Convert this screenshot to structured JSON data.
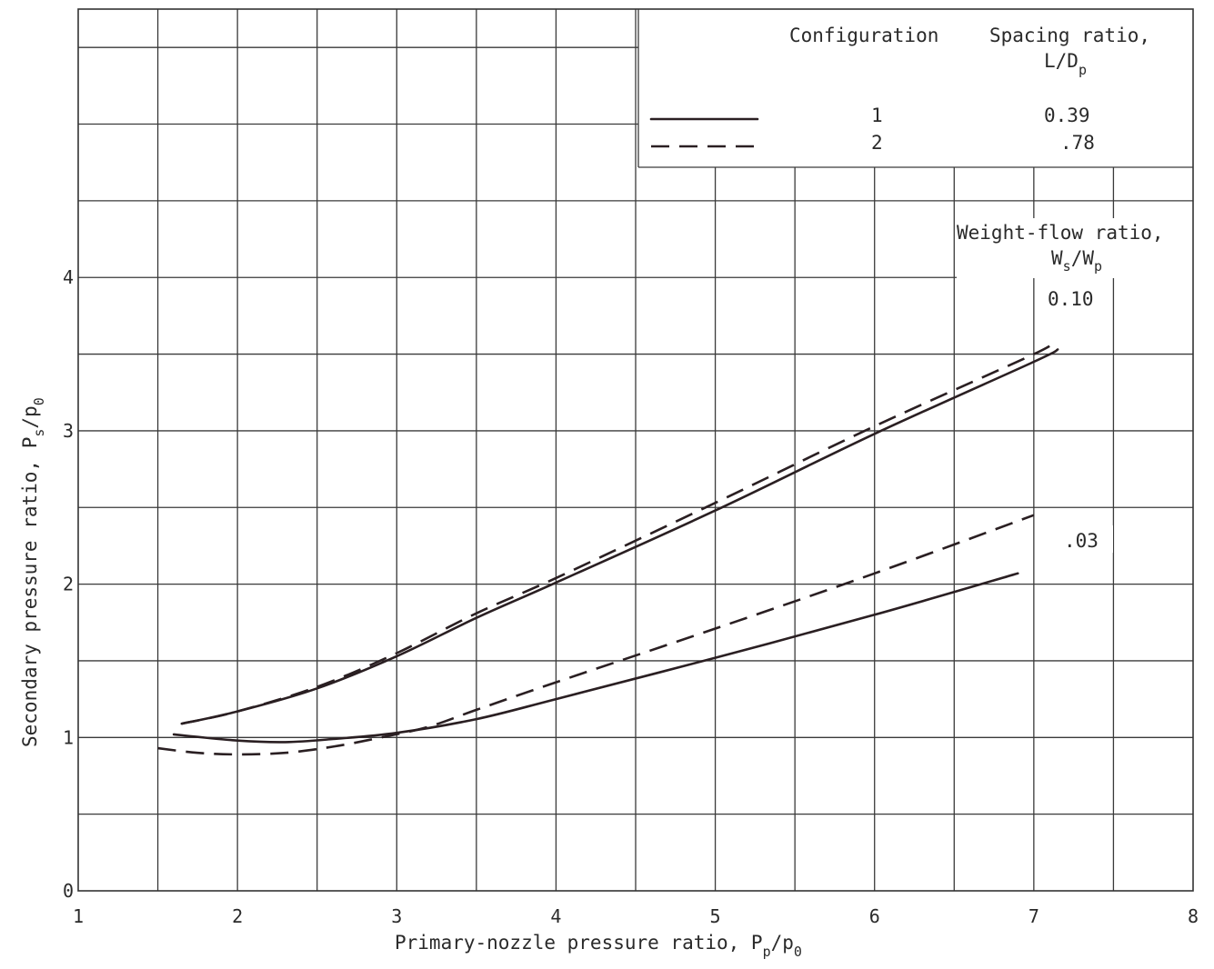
{
  "chart_data": {
    "type": "line",
    "xlabel": "Primary-nozzle pressure ratio, Pp/p0",
    "xlabel_main": "Primary-nozzle pressure ratio, P",
    "xlabel_sub1": "p",
    "xlabel_mid": "/p",
    "xlabel_sub2": "0",
    "ylabel": "Secondary pressure ratio, Ps/p0",
    "ylabel_main": "Secondary pressure ratio, P",
    "ylabel_sub1": "s",
    "ylabel_mid": "/p",
    "ylabel_sub2": "0",
    "xlim": [
      1,
      8
    ],
    "ylim": [
      0,
      5.75
    ],
    "x_ticks": [
      "1",
      "2",
      "3",
      "4",
      "5",
      "6",
      "7",
      "8"
    ],
    "y_ticks": [
      "0",
      "1",
      "2",
      "3",
      "4"
    ],
    "grid": true,
    "legend": {
      "position": "top-right",
      "col_configuration": "Configuration",
      "col_spacing": "Spacing ratio,",
      "col_spacing_sym": "L/D",
      "col_spacing_sub": "p",
      "entries": [
        {
          "style": "solid",
          "configuration": "1",
          "spacing": "0.39"
        },
        {
          "style": "dashed",
          "configuration": "2",
          "spacing": ".78"
        }
      ]
    },
    "annotations": {
      "weight_flow_title": "Weight-flow ratio,",
      "weight_flow_sym_a": "W",
      "weight_flow_sub_a": "s",
      "weight_flow_sym_b": "/W",
      "weight_flow_sub_b": "p",
      "label_high": "0.10",
      "label_low": ".03"
    },
    "series": [
      {
        "configuration": "1",
        "weight_flow": "0.10",
        "style": "solid",
        "x": [
          1.65,
          2.0,
          2.5,
          3.0,
          3.5,
          4.0,
          5.0,
          6.0,
          7.0,
          7.15
        ],
        "y": [
          1.09,
          1.17,
          1.32,
          1.53,
          1.78,
          2.01,
          2.48,
          2.98,
          3.45,
          3.53
        ]
      },
      {
        "configuration": "2",
        "weight_flow": "0.10",
        "style": "dashed",
        "x": [
          1.65,
          2.0,
          2.5,
          3.0,
          3.5,
          4.0,
          5.0,
          6.0,
          7.0,
          7.1
        ],
        "y": [
          1.09,
          1.17,
          1.33,
          1.55,
          1.81,
          2.04,
          2.53,
          3.03,
          3.5,
          3.57
        ]
      },
      {
        "configuration": "1",
        "weight_flow": "0.03",
        "style": "solid",
        "x": [
          1.6,
          2.0,
          2.3,
          2.6,
          3.0,
          3.5,
          4.0,
          5.0,
          6.0,
          6.9
        ],
        "y": [
          1.02,
          0.98,
          0.97,
          0.99,
          1.03,
          1.12,
          1.25,
          1.52,
          1.8,
          2.07
        ]
      },
      {
        "configuration": "2",
        "weight_flow": "0.03",
        "style": "dashed",
        "x": [
          1.5,
          1.75,
          2.0,
          2.3,
          2.6,
          2.9,
          3.2,
          3.5,
          4.0,
          5.0,
          6.0,
          7.0
        ],
        "y": [
          0.93,
          0.9,
          0.89,
          0.9,
          0.94,
          1.0,
          1.07,
          1.18,
          1.36,
          1.71,
          2.07,
          2.45
        ]
      }
    ]
  }
}
